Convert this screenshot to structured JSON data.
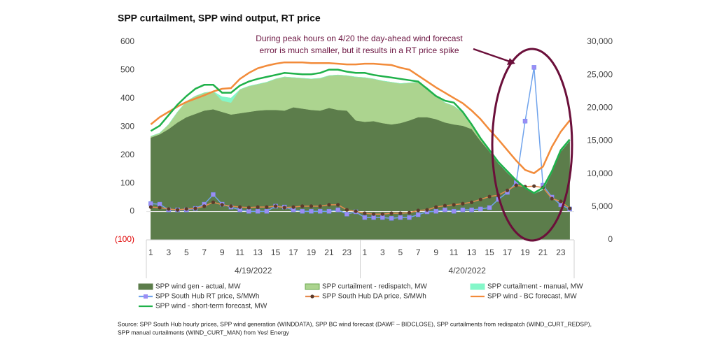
{
  "chart_data": {
    "type": "combo",
    "title": "SPP curtailment, SPP wind output, RT price",
    "annotation": [
      "During peak hours on 4/20 the day-ahead wind forecast",
      "error is much smaller, but it results in a RT price spike"
    ],
    "source": [
      "Source: SPP South Hub hourly prices, SPP wind generation (WINDDATA), SPP BC wind forecast (DAWF – BIDCLOSE), SPP curtailments from redispatch (WIND_CURT_REDSP),",
      "SPP manual curtailments (WIND_CURT_MAN) from Yes! Energy"
    ],
    "categories": [
      "1",
      null,
      "3",
      null,
      "5",
      null,
      "7",
      null,
      "9",
      null,
      "11",
      null,
      "13",
      null,
      "15",
      null,
      "17",
      null,
      "19",
      null,
      "21",
      null,
      "23",
      null,
      "1",
      null,
      "3",
      null,
      "5",
      null,
      "7",
      null,
      "9",
      null,
      "11",
      null,
      "13",
      null,
      "15",
      null,
      "17",
      null,
      "19",
      null,
      "21",
      null,
      "23",
      null
    ],
    "x_groups": [
      "4/19/2022",
      "4/20/2022"
    ],
    "ylim": [
      -100,
      600
    ],
    "yticks": [
      {
        "value": -100,
        "label": "(100)"
      },
      0,
      100,
      200,
      300,
      400,
      500,
      600
    ],
    "negative_tick_color": "#e00000",
    "y2lim": [
      0,
      30000
    ],
    "y2ticks": [
      0,
      {
        "value": 5000,
        "label": "5,000"
      },
      {
        "value": 10000,
        "label": "10,000"
      },
      {
        "value": 15000,
        "label": "15,000"
      },
      {
        "value": 20000,
        "label": "20,000"
      },
      {
        "value": 25000,
        "label": "25,000"
      },
      {
        "value": 30000,
        "label": "30,000"
      }
    ],
    "zero_line": true,
    "series": [
      {
        "name": "SPP wind gen - actual, MW",
        "kind": "area",
        "axis": "y2",
        "color": "#5c7d4b",
        "values": [
          15500,
          16000,
          16800,
          17800,
          18600,
          19100,
          19600,
          19800,
          19400,
          19000,
          19200,
          19400,
          19600,
          19700,
          19700,
          19600,
          20100,
          19900,
          19700,
          19600,
          20000,
          19700,
          19600,
          18100,
          17900,
          18000,
          17700,
          17500,
          17700,
          18100,
          18600,
          18600,
          18300,
          17800,
          17500,
          17300,
          16800,
          15000,
          13400,
          11600,
          10200,
          8900,
          7800,
          7000,
          7600,
          10200,
          13400,
          15000
        ]
      },
      {
        "name": "SPP curtailment - redispatch, MW",
        "kind": "area",
        "axis": "y2",
        "color": "#acd48f",
        "values": [
          200,
          200,
          700,
          1600,
          2400,
          2700,
          2700,
          2700,
          1700,
          1800,
          3600,
          3900,
          4000,
          4200,
          4700,
          5100,
          4500,
          4600,
          4700,
          4900,
          4900,
          5300,
          5300,
          6600,
          6700,
          6400,
          6400,
          6400,
          6000,
          5700,
          5300,
          4500,
          3600,
          3000,
          2800,
          2000,
          700,
          400,
          0,
          0,
          0,
          0,
          0,
          0,
          0,
          0,
          0,
          0
        ]
      },
      {
        "name": "SPP curtailment - manual, MW",
        "kind": "area",
        "axis": "y2",
        "color": "#84f7c9",
        "values": [
          0,
          0,
          0,
          0,
          0,
          0,
          0,
          0,
          600,
          700,
          0,
          0,
          0,
          0,
          0,
          0,
          0,
          0,
          0,
          0,
          0,
          0,
          0,
          0,
          0,
          0,
          0,
          0,
          0,
          0,
          0,
          0,
          0,
          0,
          0,
          0,
          0,
          0,
          0,
          0,
          0,
          0,
          0,
          0,
          0,
          0,
          0,
          0
        ]
      },
      {
        "name": "SPP South Hub RT price, S/MWh",
        "kind": "line-markers",
        "axis": "y",
        "color": "#6fa3ec",
        "marker_color": "#9b8df4",
        "marker": "square",
        "values": [
          28,
          26,
          6,
          6,
          6,
          11,
          26,
          60,
          26,
          16,
          6,
          1,
          1,
          1,
          19,
          16,
          6,
          1,
          1,
          1,
          1,
          6,
          -9,
          -1,
          -21,
          -21,
          -21,
          -24,
          -21,
          -21,
          -11,
          -1,
          1,
          6,
          1,
          6,
          6,
          9,
          14,
          43,
          68,
          103,
          320,
          510,
          93,
          51,
          24,
          9
        ]
      },
      {
        "name": "SPP South Hub DA price, S/MWh",
        "kind": "line-markers",
        "axis": "y",
        "color": "#e58a4e",
        "marker_color": "#5b3b2c",
        "marker": "circle",
        "values": [
          16,
          14,
          9,
          6,
          9,
          11,
          19,
          33,
          24,
          19,
          16,
          14,
          16,
          16,
          19,
          14,
          16,
          19,
          19,
          19,
          24,
          24,
          6,
          1,
          -6,
          -9,
          -9,
          -6,
          -6,
          -4,
          4,
          6,
          16,
          21,
          24,
          28,
          33,
          43,
          53,
          58,
          75,
          93,
          88,
          90,
          85,
          46,
          36,
          11
        ]
      },
      {
        "name": "SPP wind - BC forecast, MW",
        "kind": "line",
        "axis": "y2",
        "color": "#f28b3a",
        "values": [
          17500,
          18600,
          19400,
          20200,
          20900,
          21400,
          21900,
          22500,
          22900,
          23000,
          24400,
          25300,
          26000,
          26400,
          26700,
          26900,
          26900,
          26900,
          26800,
          26800,
          26800,
          26700,
          26600,
          26600,
          26700,
          26700,
          26600,
          26500,
          26100,
          25800,
          24900,
          24000,
          23100,
          22300,
          21500,
          20700,
          19600,
          18300,
          16700,
          15200,
          13600,
          12000,
          10600,
          10100,
          11100,
          14100,
          16400,
          18100
        ]
      },
      {
        "name": "SPP wind - short-term forecast, MW",
        "kind": "line",
        "axis": "y2",
        "color": "#1fb14a",
        "values": [
          16500,
          17300,
          18900,
          20500,
          21800,
          22900,
          23500,
          23500,
          22300,
          22300,
          23400,
          24000,
          24400,
          24700,
          25000,
          25300,
          25200,
          25100,
          25100,
          25300,
          25800,
          25800,
          25500,
          25300,
          25300,
          25000,
          24800,
          24600,
          24400,
          24200,
          24000,
          22900,
          21800,
          21100,
          20800,
          19400,
          17500,
          15400,
          13600,
          11800,
          10400,
          9000,
          7900,
          7100,
          7900,
          10400,
          13600,
          15200
        ]
      }
    ]
  }
}
